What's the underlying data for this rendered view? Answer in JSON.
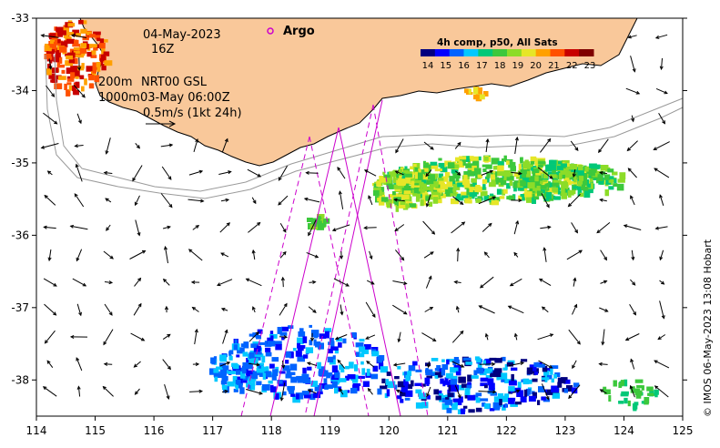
{
  "map": {
    "date": "04-May-2023",
    "hour": "16Z",
    "argo_label": "Argo",
    "isobath_label_1": "200m",
    "isobath_label_2": "1000m",
    "model_label": "NRT00 GSL",
    "model_time": "03-May 06:00Z",
    "velocity_scale": "0.5m/s (1kt 24h)",
    "credit": "© IMOS 06-May-2023 13:08 Hobart",
    "lon_range": [
      114,
      125
    ],
    "lat_range": [
      -38.5,
      -33
    ],
    "lon_ticks": [
      "114",
      "115",
      "116",
      "117",
      "118",
      "119",
      "120",
      "121",
      "122",
      "123",
      "124",
      "125"
    ],
    "lat_ticks": [
      "-33",
      "-34",
      "-35",
      "-36",
      "-37",
      "-38"
    ],
    "land_color": "#f9c89a",
    "track_color": "#cc00cc"
  },
  "colorbar": {
    "title": "4h comp, p50, All Sats",
    "labels": [
      "14",
      "15",
      "16",
      "17",
      "18",
      "19",
      "20",
      "21",
      "22",
      "23"
    ],
    "colors": [
      "#00007f",
      "#0000ff",
      "#0063ff",
      "#00c8ff",
      "#00c878",
      "#3cc83c",
      "#8cdc28",
      "#e6e628",
      "#ffa000",
      "#ff5000",
      "#c80000",
      "#7f0000"
    ]
  }
}
